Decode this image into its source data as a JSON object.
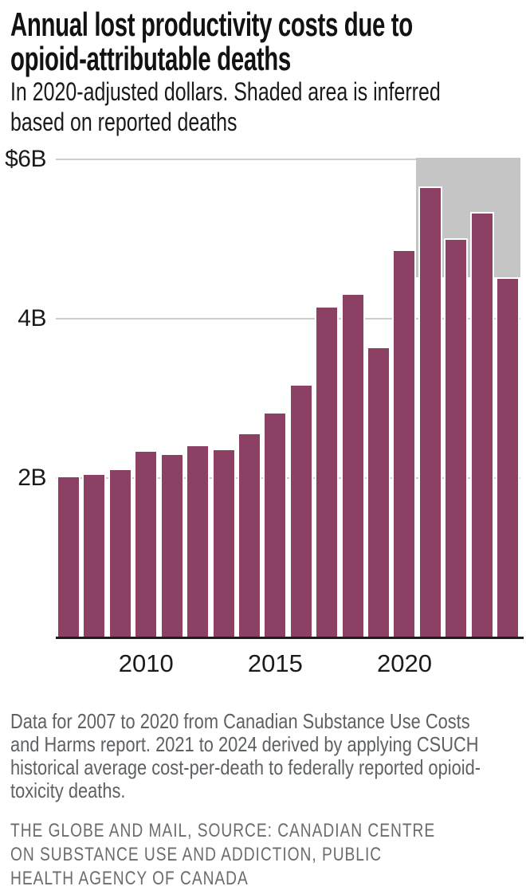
{
  "header": {
    "title_lines": [
      "Annual lost productivity costs due to",
      "opioid-attributable deaths"
    ],
    "subtitle_lines": [
      "In 2020-adjusted dollars. Shaded area is inferred",
      "based on reported deaths"
    ]
  },
  "chart_data": {
    "type": "bar",
    "title": "Annual lost productivity costs due to opioid-attributable deaths",
    "subtitle": "In 2020-adjusted dollars. Shaded area is inferred based on reported deaths",
    "unit": "billions of 2020-adjusted dollars",
    "categories": [
      2007,
      2008,
      2009,
      2010,
      2011,
      2012,
      2013,
      2014,
      2015,
      2016,
      2017,
      2018,
      2019,
      2020,
      2021,
      2022,
      2023,
      2024
    ],
    "values": [
      2.03,
      2.06,
      2.12,
      2.35,
      2.31,
      2.42,
      2.37,
      2.57,
      2.83,
      3.18,
      4.16,
      4.32,
      3.65,
      4.87,
      5.66,
      5.01,
      5.34,
      4.52
    ],
    "ylim": [
      0,
      6
    ],
    "grid": true,
    "yticks": [
      {
        "value": 6,
        "label": "$6B"
      },
      {
        "value": 4,
        "label": "4B"
      },
      {
        "value": 2,
        "label": "2B"
      }
    ],
    "xticks": [
      {
        "year": 2010,
        "label": "2010"
      },
      {
        "year": 2015,
        "label": "2015"
      },
      {
        "year": 2020,
        "label": "2020"
      }
    ],
    "shaded_region": {
      "start_year": 2021,
      "end_year": 2024,
      "top_value": 6,
      "bottom_value": 4.52,
      "note": "inferred based on reported deaths"
    },
    "colors": {
      "bar": "#8c4063",
      "shade": "#c5c5c5",
      "gridline": "#cdcdcd",
      "axis": "#1d1d1d"
    }
  },
  "footer": {
    "note": "Data for 2007 to 2020 from Canadian Substance Use Costs and Harms report. 2021 to 2024 derived by applying CSUCH historical average cost-per-death to federally reported opioid-toxicity deaths.",
    "note_lines": [
      "Data for 2007 to 2020 from Canadian Substance Use Costs",
      "and Harms report. 2021 to 2024 derived by applying CSUCH",
      "historical average cost-per-death to federally reported opioid-",
      "toxicity deaths."
    ],
    "source": "THE GLOBE AND MAIL, SOURCE: CANADIAN CENTRE ON SUBSTANCE USE AND ADDICTION, PUBLIC HEALTH AGENCY OF CANADA",
    "source_lines": [
      "THE GLOBE AND MAIL, SOURCE: CANADIAN CENTRE",
      "ON SUBSTANCE USE AND ADDICTION, PUBLIC",
      "HEALTH AGENCY OF CANADA"
    ]
  }
}
